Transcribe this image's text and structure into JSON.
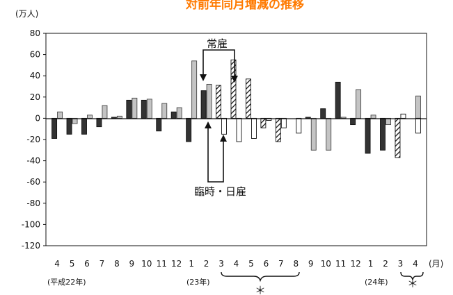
{
  "chart_data": {
    "type": "bar",
    "title": "対前年同月増減の推移",
    "unit_label": "(万人)",
    "x_unit_label": "(月)",
    "ylim": [
      -120,
      80
    ],
    "y_ticks": [
      80,
      60,
      40,
      20,
      0,
      -20,
      -40,
      -60,
      -80,
      -100,
      -120
    ],
    "grid": false,
    "categories": [
      "4",
      "5",
      "6",
      "7",
      "8",
      "9",
      "10",
      "11",
      "12",
      "1",
      "2",
      "3",
      "4",
      "5",
      "6",
      "7",
      "8",
      "9",
      "10",
      "11",
      "12",
      "1",
      "2",
      "3",
      "4"
    ],
    "era_labels": [
      {
        "text": "(平成22年)",
        "at_index": 0
      },
      {
        "text": "(23年)",
        "at_index": 10
      },
      {
        "text": "(24年)",
        "at_index": 22
      }
    ],
    "series": [
      {
        "name": "常雇",
        "style": "solid-dark",
        "values": [
          -19,
          -15,
          -15,
          -8,
          1,
          17,
          17,
          -12,
          6,
          -22,
          26,
          null,
          null,
          null,
          null,
          null,
          null,
          1,
          9,
          34,
          -6,
          -33,
          -30,
          null,
          null
        ]
      },
      {
        "name": "常雇",
        "style": "hatched",
        "values": [
          null,
          null,
          null,
          null,
          null,
          null,
          null,
          null,
          null,
          null,
          null,
          31,
          55,
          37,
          -9,
          -22,
          null,
          null,
          null,
          null,
          null,
          null,
          null,
          -37,
          null
        ]
      },
      {
        "name": "臨時・日雇",
        "style": "light-gray",
        "values": [
          6,
          -5,
          3,
          12,
          2,
          19,
          18,
          14,
          10,
          54,
          32,
          null,
          null,
          null,
          null,
          null,
          null,
          -30,
          -30,
          1,
          27,
          3,
          -6,
          null,
          21
        ]
      },
      {
        "name": "臨時・日雇",
        "style": "outline",
        "values": [
          null,
          null,
          null,
          null,
          null,
          null,
          null,
          null,
          null,
          null,
          null,
          -15,
          -22,
          -19,
          -2,
          -9,
          -14,
          null,
          null,
          null,
          null,
          null,
          null,
          4,
          -14
        ]
      }
    ],
    "annotations": [
      {
        "text": "常雇"
      },
      {
        "text": "臨時・日雇"
      }
    ],
    "asterisk_note": "＊"
  }
}
